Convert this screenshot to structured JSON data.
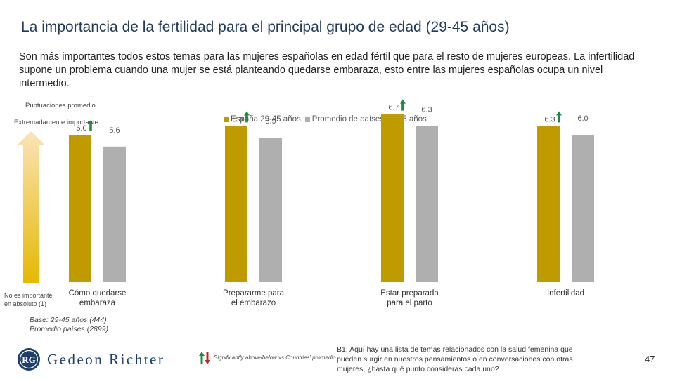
{
  "slide": {
    "title": "La importancia de la fertilidad para el principal grupo de edad (29-45 años)",
    "intro": "Son más importantes todos estos temas para las mujeres españolas en edad fértil que para el resto de mujeres europeas. La infertilidad supone un problema cuando una mujer  se está planteando quedarse embaraza, esto entre las mujeres españolas ocupa un nivel intermedio.",
    "subtitle": "Puntuaciones promedio",
    "scale_top": "Extremadamente importante",
    "scale_bottom": "No es importante en absoluto (1)",
    "base_line1": "Base: 29-45 años (444)",
    "base_line2": "Promedio países (2899)",
    "significance_legend": "Significantly above/below vs Countries' promedio",
    "question": "B1: Aquí hay una lista de temas relacionados con la salud femenina que pueden surgir en nuestros pensamientos o en conversaciones con otras mujeres, ¿hasta qué punto consideras cada uno?",
    "page_number": "47",
    "logo_text": "Gedeon Richter",
    "logo_mark": "RG"
  },
  "colors": {
    "title": "#1f3a5a",
    "spain": "#bf9b00",
    "average": "#afafaf",
    "arrow_up": "#1f8a3b",
    "arrow_down": "#c0261b",
    "gradient_top": "#fbe3b8",
    "gradient_bottom": "#e6b800"
  },
  "chart_data": {
    "type": "bar",
    "categories": [
      "Cómo quedarse embaraza",
      "Prepararme para el embarazo",
      "Estar preparada para el parto",
      "Infertilidad"
    ],
    "series": [
      {
        "name": "España 29-45 años",
        "values": [
          6.0,
          6.3,
          6.7,
          6.3
        ],
        "labels": [
          "6.0",
          "6.3",
          "6.7",
          "6.3"
        ],
        "significance": [
          "above",
          "above",
          "above",
          "above"
        ]
      },
      {
        "name": "Promedio de países 29-45 años",
        "values": [
          5.6,
          5.9,
          6.3,
          6.0
        ],
        "labels": [
          "5.6",
          "5.9",
          "6.3",
          "6.0"
        ]
      }
    ],
    "ylim": [
      1,
      7
    ],
    "grid": false,
    "legend_position": "top"
  }
}
